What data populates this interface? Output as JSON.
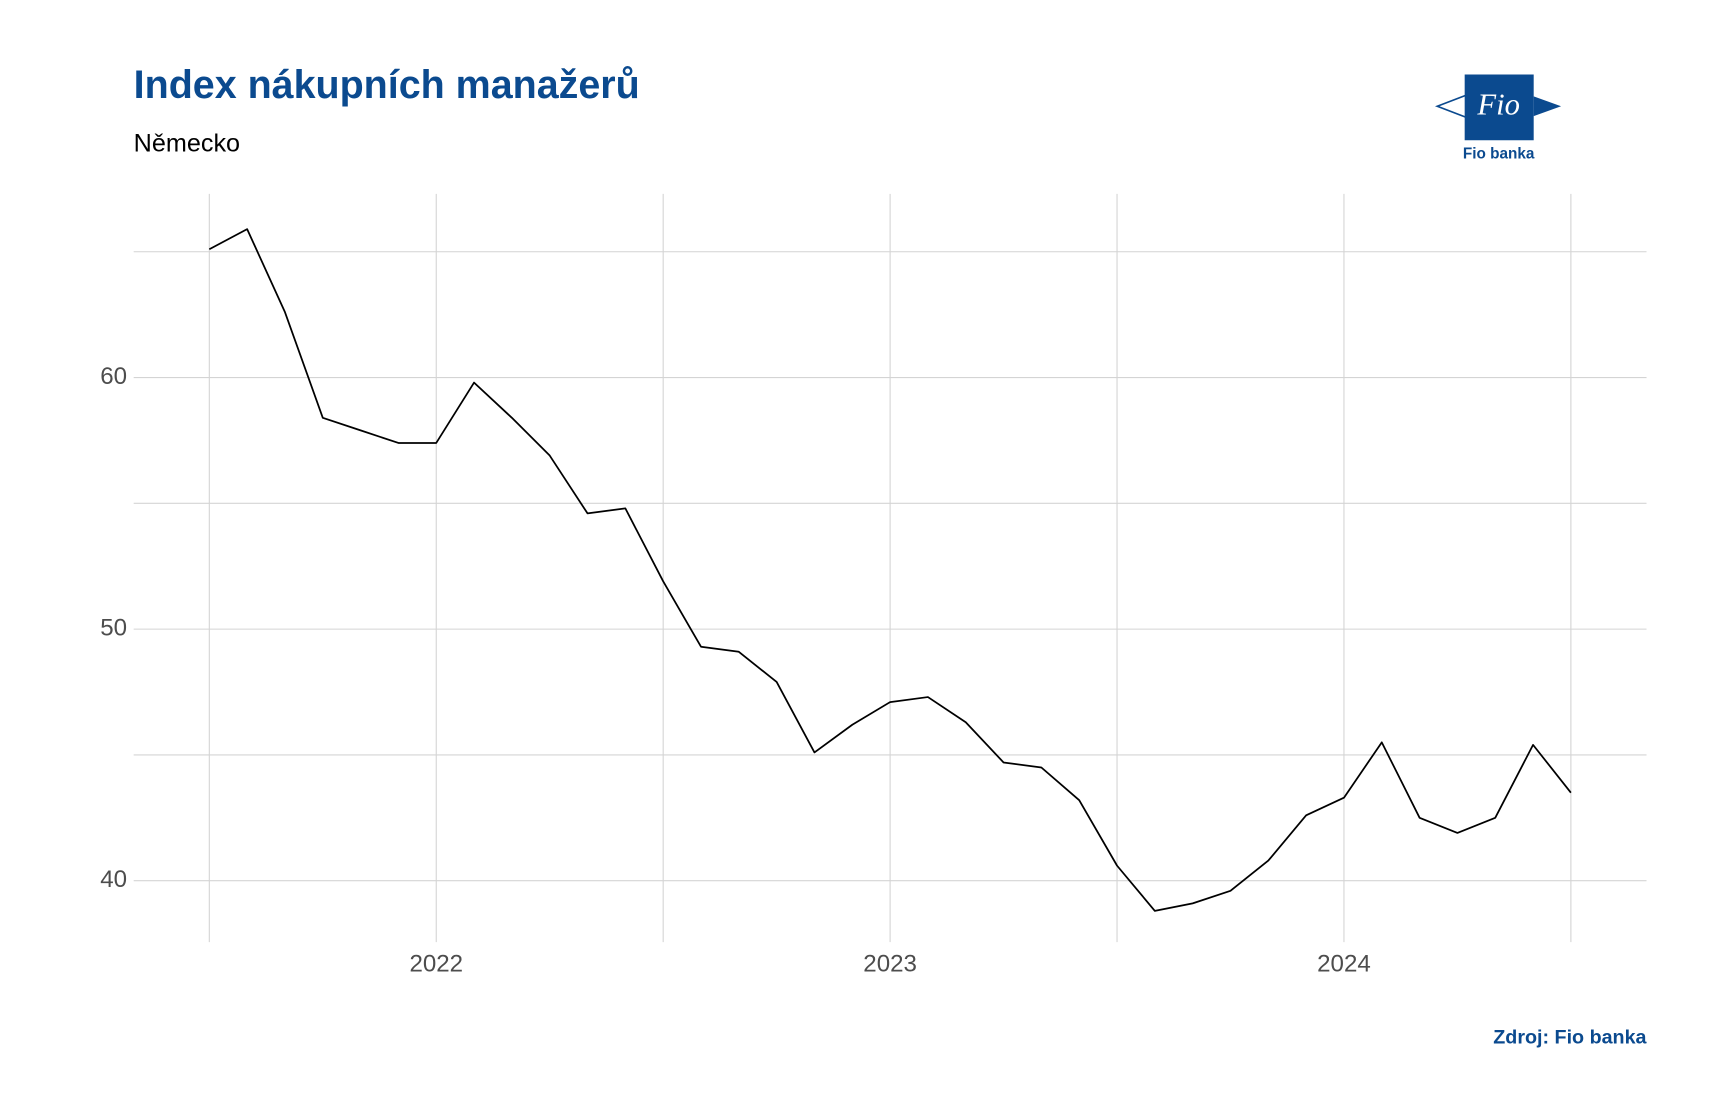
{
  "chart_data": {
    "type": "line",
    "title": "Index nákupních manažerů",
    "subtitle": "Německo",
    "source": "Zdroj: Fio banka",
    "logo": {
      "mark": "Fio",
      "name": "Fio banka"
    },
    "x": [
      "2021-07",
      "2021-08",
      "2021-09",
      "2021-10",
      "2021-11",
      "2021-12",
      "2022-01",
      "2022-02",
      "2022-03",
      "2022-04",
      "2022-05",
      "2022-06",
      "2022-07",
      "2022-08",
      "2022-09",
      "2022-10",
      "2022-11",
      "2022-12",
      "2023-01",
      "2023-02",
      "2023-03",
      "2023-04",
      "2023-05",
      "2023-06",
      "2023-07",
      "2023-08",
      "2023-09",
      "2023-10",
      "2023-11",
      "2023-12",
      "2024-01",
      "2024-02",
      "2024-03",
      "2024-04",
      "2024-05",
      "2024-06",
      "2024-07"
    ],
    "series": [
      {
        "color": "#000000",
        "values": [
          65.1,
          65.9,
          62.6,
          58.4,
          57.9,
          57.4,
          57.4,
          59.8,
          58.4,
          56.9,
          54.6,
          54.8,
          51.9,
          49.3,
          49.1,
          47.9,
          45.1,
          46.2,
          47.1,
          47.3,
          46.3,
          44.7,
          44.5,
          43.2,
          40.6,
          38.8,
          39.1,
          39.6,
          40.8,
          42.6,
          43.3,
          45.5,
          42.5,
          41.9,
          42.5,
          45.4,
          43.5
        ]
      }
    ],
    "xlim": [
      "2021-05",
      "2024-09"
    ],
    "xticks": [
      {
        "value": "2022-01",
        "label": "2022"
      },
      {
        "value": "2023-01",
        "label": "2023"
      },
      {
        "value": "2024-01",
        "label": "2024"
      }
    ],
    "x_minor_ticks": [
      "2021-07",
      "2022-07",
      "2023-07",
      "2024-07"
    ],
    "ylim": [
      37.56,
      67.3
    ],
    "yticks": [
      40,
      50,
      60
    ],
    "y_minor_ticks": [
      45,
      55,
      65
    ],
    "grid": true
  }
}
